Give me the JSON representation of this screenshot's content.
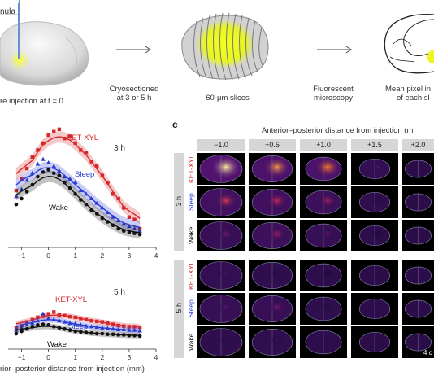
{
  "panel_a": {
    "cannula_label": "nula",
    "caption_left": "re injection at t = 0",
    "step1": [
      "Cryosectioned",
      "at 3 or 5 h"
    ],
    "step2": "60-μm slices",
    "step3": [
      "Fluorescent",
      "microscopy"
    ],
    "step4": [
      "Mean pixel in",
      "of each sl"
    ]
  },
  "panel_b": {
    "xlabel": "rior–posterior distance from injection (mm)",
    "xticks": [
      "−1",
      "0",
      "1",
      "2",
      "3",
      "4"
    ],
    "top": {
      "time": "3 h",
      "series": [
        {
          "name": "KET-XYL",
          "color": "#d9282c",
          "marker": "square",
          "x": [
            -1.2,
            -1.0,
            -0.8,
            -0.6,
            -0.4,
            -0.2,
            0.0,
            0.2,
            0.4,
            0.6,
            0.8,
            1.0,
            1.2,
            1.4,
            1.6,
            1.8,
            2.0,
            2.2,
            2.4,
            2.6,
            2.8,
            3.0,
            3.2,
            3.4
          ],
          "y": [
            0.45,
            0.55,
            0.64,
            0.74,
            0.8,
            0.86,
            0.93,
            0.96,
            0.98,
            0.9,
            0.92,
            0.86,
            0.8,
            0.78,
            0.7,
            0.66,
            0.58,
            0.52,
            0.42,
            0.38,
            0.3,
            0.22,
            0.2,
            0.12
          ]
        },
        {
          "name": "Sleep",
          "color": "#2a3cd4",
          "marker": "triangle",
          "x": [
            -1.2,
            -1.0,
            -0.8,
            -0.6,
            -0.4,
            -0.2,
            0.0,
            0.2,
            0.4,
            0.6,
            0.8,
            1.0,
            1.2,
            1.4,
            1.6,
            1.8,
            2.0,
            2.2,
            2.4,
            2.6,
            2.8,
            3.0,
            3.2,
            3.4
          ],
          "y": [
            0.4,
            0.46,
            0.54,
            0.6,
            0.68,
            0.72,
            0.69,
            0.66,
            0.62,
            0.57,
            0.55,
            0.52,
            0.45,
            0.42,
            0.38,
            0.34,
            0.3,
            0.26,
            0.22,
            0.19,
            0.16,
            0.14,
            0.12,
            0.1
          ]
        },
        {
          "name": "Wake",
          "color": "#111111",
          "marker": "circle",
          "x": [
            -1.2,
            -1.0,
            -0.8,
            -0.6,
            -0.4,
            -0.2,
            0.0,
            0.2,
            0.4,
            0.6,
            0.8,
            1.0,
            1.2,
            1.4,
            1.6,
            1.8,
            2.0,
            2.2,
            2.4,
            2.6,
            2.8,
            3.0,
            3.2,
            3.4
          ],
          "y": [
            0.33,
            0.38,
            0.44,
            0.5,
            0.57,
            0.61,
            0.63,
            0.6,
            0.58,
            0.52,
            0.47,
            0.42,
            0.37,
            0.33,
            0.28,
            0.25,
            0.21,
            0.18,
            0.15,
            0.12,
            0.1,
            0.09,
            0.08,
            0.07
          ]
        }
      ]
    },
    "bottom": {
      "time": "5 h",
      "series": [
        {
          "name": "KET-XYL",
          "color": "#d9282c",
          "marker": "square",
          "x": [
            -1.2,
            -1.0,
            -0.8,
            -0.6,
            -0.4,
            -0.2,
            0.0,
            0.2,
            0.4,
            0.6,
            0.8,
            1.0,
            1.2,
            1.4,
            1.6,
            1.8,
            2.0,
            2.2,
            2.4,
            2.6,
            2.8,
            3.0,
            3.2,
            3.4
          ],
          "y": [
            0.28,
            0.32,
            0.38,
            0.42,
            0.46,
            0.48,
            0.52,
            0.55,
            0.5,
            0.49,
            0.47,
            0.46,
            0.44,
            0.42,
            0.4,
            0.39,
            0.38,
            0.36,
            0.34,
            0.32,
            0.31,
            0.3,
            0.3,
            0.29
          ]
        },
        {
          "name": "Sleep",
          "color": "#2a3cd4",
          "marker": "triangle",
          "x": [
            -1.2,
            -1.0,
            -0.8,
            -0.6,
            -0.4,
            -0.2,
            0.0,
            0.2,
            0.4,
            0.6,
            0.8,
            1.0,
            1.2,
            1.4,
            1.6,
            1.8,
            2.0,
            2.2,
            2.4,
            2.6,
            2.8,
            3.0,
            3.2,
            3.4
          ],
          "y": [
            0.24,
            0.28,
            0.33,
            0.36,
            0.4,
            0.52,
            0.44,
            0.42,
            0.4,
            0.38,
            0.36,
            0.35,
            0.33,
            0.31,
            0.3,
            0.29,
            0.28,
            0.27,
            0.26,
            0.25,
            0.25,
            0.24,
            0.24,
            0.23
          ]
        },
        {
          "name": "Wake",
          "color": "#111111",
          "marker": "circle",
          "x": [
            -1.2,
            -1.0,
            -0.8,
            -0.6,
            -0.4,
            -0.2,
            0.0,
            0.2,
            0.4,
            0.6,
            0.8,
            1.0,
            1.2,
            1.4,
            1.6,
            1.8,
            2.0,
            2.2,
            2.4,
            2.6,
            2.8,
            3.0,
            3.2,
            3.4
          ],
          "y": [
            0.18,
            0.22,
            0.26,
            0.3,
            0.33,
            0.34,
            0.33,
            0.3,
            0.28,
            0.26,
            0.24,
            0.22,
            0.21,
            0.2,
            0.19,
            0.18,
            0.18,
            0.17,
            0.17,
            0.16,
            0.16,
            0.15,
            0.15,
            0.14
          ]
        }
      ]
    }
  },
  "panel_c": {
    "letter": "c",
    "title": "Anterior–posterior distance from injection (m",
    "columns": [
      "−1.0",
      "+0.5",
      "+1.0",
      "+1.5",
      "+2.0"
    ],
    "groups": [
      {
        "label": "3 h",
        "rows": [
          {
            "name": "KET-XYL",
            "color": "#d9282c",
            "intensity": [
              1.0,
              0.85,
              0.8,
              0.25,
              0.05
            ]
          },
          {
            "name": "Sleep",
            "color": "#2a3cd4",
            "intensity": [
              0.6,
              0.55,
              0.45,
              0.15,
              0.03
            ]
          },
          {
            "name": "Wake",
            "color": "#111111",
            "intensity": [
              0.35,
              0.45,
              0.3,
              0.1,
              0.02
            ]
          }
        ]
      },
      {
        "label": "5 h",
        "rows": [
          {
            "name": "KET-XYL",
            "color": "#d9282c",
            "intensity": [
              0.25,
              0.15,
              0.1,
              0.06,
              0.03
            ]
          },
          {
            "name": "Sleep",
            "color": "#2a3cd4",
            "intensity": [
              0.3,
              0.35,
              0.12,
              0.08,
              0.04
            ]
          },
          {
            "name": "Wake",
            "color": "#111111",
            "intensity": [
              0.15,
              0.18,
              0.08,
              0.05,
              0.03
            ]
          }
        ]
      }
    ],
    "scalebar": "4 c"
  }
}
